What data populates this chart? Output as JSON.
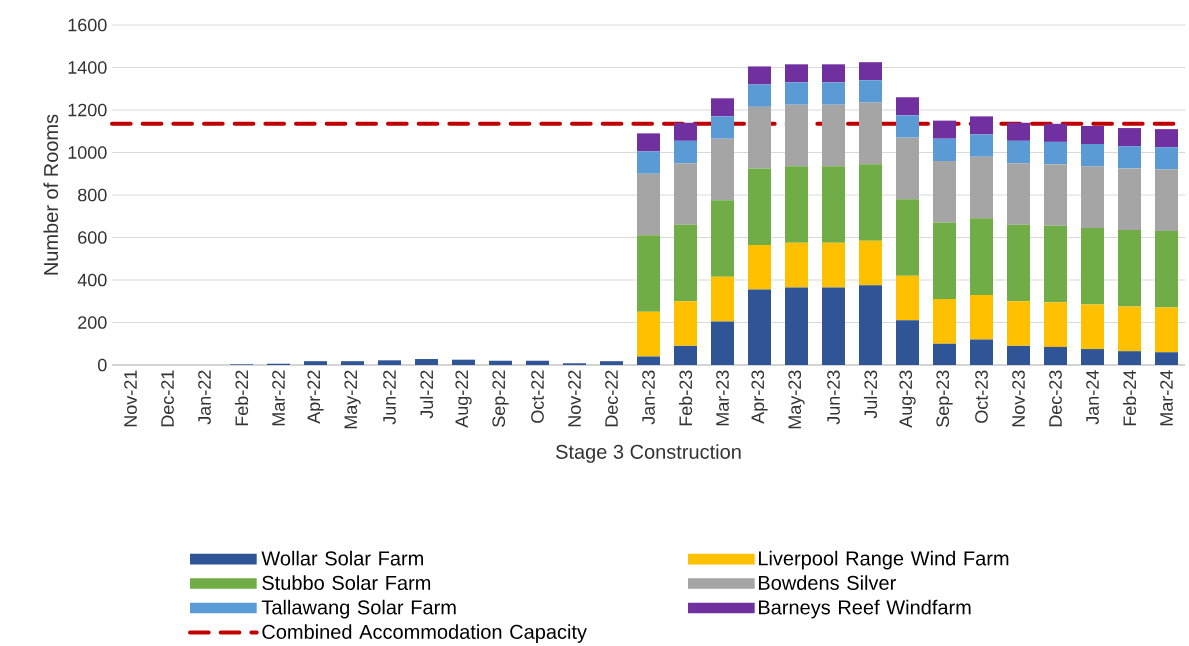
{
  "chart_data": {
    "type": "bar",
    "stacked": true,
    "xlabel": "Stage 3 Construction",
    "ylabel": "Number of Rooms",
    "categories": [
      "Nov-21",
      "Dec-21",
      "Jan-22",
      "Feb-22",
      "Mar-22",
      "Apr-22",
      "May-22",
      "Jun-22",
      "Jul-22",
      "Aug-22",
      "Sep-22",
      "Oct-22",
      "Nov-22",
      "Dec-22",
      "Jan-23",
      "Feb-23",
      "Mar-23",
      "Apr-23",
      "May-23",
      "Jun-23",
      "Jul-23",
      "Aug-23",
      "Sep-23",
      "Oct-23",
      "Nov-23",
      "Dec-23",
      "Jan-24",
      "Feb-24",
      "Mar-24"
    ],
    "series": [
      {
        "name": "Wollar Solar Farm",
        "color": "#2f5597",
        "values": [
          0,
          0,
          0,
          3,
          6,
          18,
          18,
          22,
          28,
          25,
          20,
          20,
          8,
          18,
          40,
          90,
          205,
          355,
          365,
          365,
          375,
          210,
          100,
          120,
          90,
          85,
          75,
          65,
          60
        ]
      },
      {
        "name": "Liverpool Range Wind Farm",
        "color": "#ffc000",
        "values": [
          0,
          0,
          0,
          0,
          0,
          0,
          0,
          0,
          0,
          0,
          0,
          0,
          0,
          0,
          210,
          210,
          210,
          210,
          210,
          210,
          210,
          210,
          210,
          210,
          210,
          210,
          210,
          210,
          210
        ]
      },
      {
        "name": "Stubbo Solar Farm",
        "color": "#70ad47",
        "values": [
          0,
          0,
          0,
          0,
          0,
          0,
          0,
          0,
          0,
          0,
          0,
          0,
          0,
          0,
          360,
          360,
          360,
          360,
          360,
          360,
          360,
          360,
          360,
          360,
          360,
          360,
          360,
          360,
          360
        ]
      },
      {
        "name": "Bowdens Silver",
        "color": "#a5a5a5",
        "values": [
          0,
          0,
          0,
          0,
          0,
          0,
          0,
          0,
          0,
          0,
          0,
          0,
          0,
          0,
          290,
          290,
          290,
          290,
          290,
          290,
          290,
          290,
          290,
          290,
          290,
          290,
          290,
          290,
          290
        ]
      },
      {
        "name": "Tallawang Solar Farm",
        "color": "#5b9bd5",
        "values": [
          0,
          0,
          0,
          0,
          0,
          0,
          0,
          0,
          0,
          0,
          0,
          0,
          0,
          0,
          105,
          105,
          105,
          105,
          105,
          105,
          105,
          105,
          105,
          105,
          105,
          105,
          105,
          105,
          105
        ]
      },
      {
        "name": "Barneys Reef Windfarm",
        "color": "#7030a0",
        "values": [
          0,
          0,
          0,
          0,
          0,
          0,
          0,
          0,
          0,
          0,
          0,
          0,
          0,
          0,
          85,
          85,
          85,
          85,
          85,
          85,
          85,
          85,
          85,
          85,
          85,
          85,
          85,
          85,
          85
        ]
      }
    ],
    "ref_lines": [
      {
        "axis": "y",
        "value": 1135,
        "label": "Combined Accommodation Capacity",
        "color": "#c00000",
        "line_style": "dashed"
      }
    ],
    "ylim": [
      0,
      1600
    ],
    "yticks": [
      0,
      200,
      400,
      600,
      800,
      1000,
      1200,
      1400,
      1600
    ],
    "grid": "y",
    "legend": "bottom"
  }
}
